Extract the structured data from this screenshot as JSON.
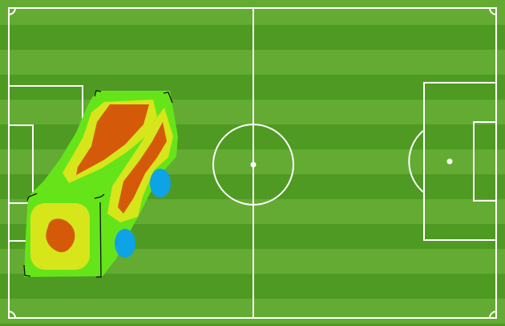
{
  "pitch": {
    "stripe_light": "#63ab33",
    "stripe_dark": "#4e9a22",
    "line_color": "#ffffff"
  },
  "heatmap": {
    "levels": {
      "low": "#66e41a",
      "medium": "#d7e51b",
      "high": "#d45a0a",
      "cold": "#0ea3e4"
    },
    "outline_color": "#111111"
  }
}
